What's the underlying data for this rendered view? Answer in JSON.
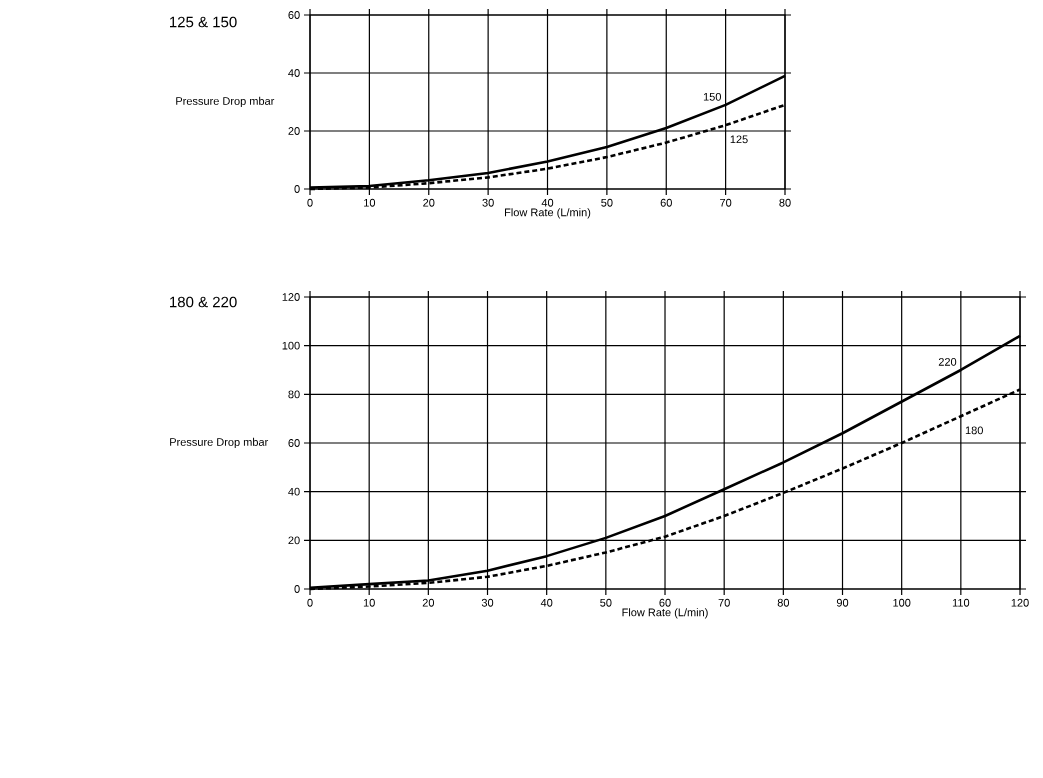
{
  "chart_data": [
    {
      "type": "line",
      "title": "125 & 150",
      "xlabel": "Flow Rate (L/min)",
      "ylabel": "Pressure Drop mbar",
      "x": [
        0,
        10,
        20,
        30,
        40,
        50,
        60,
        70,
        80
      ],
      "xlim": [
        0,
        80
      ],
      "ylim": [
        0,
        60
      ],
      "xticks": [
        0,
        10,
        20,
        30,
        40,
        50,
        60,
        70,
        80
      ],
      "yticks": [
        0,
        20,
        40,
        60
      ],
      "grid": true,
      "series": [
        {
          "name": "150",
          "color": "#000000",
          "line_style": "solid",
          "values": [
            0.5,
            1,
            3,
            5.5,
            9.5,
            14.5,
            21,
            29,
            39
          ]
        },
        {
          "name": "125",
          "color": "#000000",
          "line_style": "dashed",
          "values": [
            0,
            0.5,
            2,
            4,
            7,
            11,
            16,
            22,
            29
          ]
        }
      ]
    },
    {
      "type": "line",
      "title": "180 & 220",
      "xlabel": "Flow Rate (L/min)",
      "ylabel": "Pressure Drop mbar",
      "x": [
        0,
        10,
        20,
        30,
        40,
        50,
        60,
        70,
        80,
        90,
        100,
        110,
        120
      ],
      "xlim": [
        0,
        120
      ],
      "ylim": [
        0,
        120
      ],
      "xticks": [
        0,
        10,
        20,
        30,
        40,
        50,
        60,
        70,
        80,
        90,
        100,
        110,
        120
      ],
      "yticks": [
        0,
        20,
        40,
        60,
        80,
        100,
        120
      ],
      "grid": true,
      "series": [
        {
          "name": "220",
          "color": "#000000",
          "line_style": "solid",
          "values": [
            0.5,
            2,
            3.5,
            7.5,
            13.5,
            21,
            30,
            41,
            52,
            64,
            77,
            90,
            104
          ]
        },
        {
          "name": "180",
          "color": "#000000",
          "line_style": "dashed",
          "values": [
            0,
            1,
            2.5,
            5,
            9.5,
            15,
            21.5,
            30,
            39.5,
            49.5,
            60,
            71,
            82
          ]
        }
      ]
    }
  ]
}
